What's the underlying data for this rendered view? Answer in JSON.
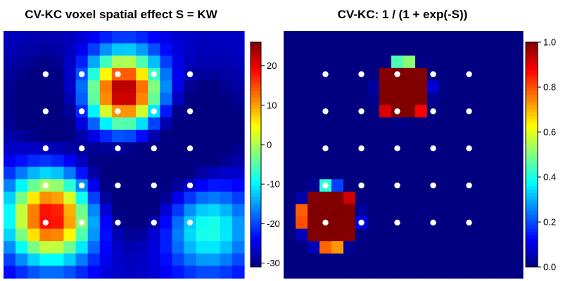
{
  "chart_data": [
    {
      "type": "heatmap",
      "title": "CV-KC voxel spatial effect S = KW",
      "xlabel": "",
      "ylabel": "",
      "grid_size": [
        20,
        20
      ],
      "colorbar": {
        "ticks": [
          20,
          10,
          0,
          -10,
          -20,
          -30
        ],
        "tick_labels": [
          "20",
          "10",
          "0",
          "-10",
          "-20",
          "-30"
        ],
        "range": [
          -31,
          26
        ],
        "palette": "jet"
      },
      "knots": {
        "columns": [
          3,
          6,
          9,
          12,
          15
        ],
        "rows": [
          3,
          6,
          9,
          12,
          15
        ],
        "color": "#ffffff"
      },
      "components": [
        {
          "cx": 9.5,
          "cy": 4.5,
          "amp": 55,
          "sigma": 2.2
        },
        {
          "cx": 3.5,
          "cy": 14.5,
          "amp": 48,
          "sigma": 2.5
        },
        {
          "cx": 16.5,
          "cy": 15.5,
          "amp": 20,
          "sigma": 2.5
        },
        {
          "cx": 9.5,
          "cy": 12.0,
          "amp": -12,
          "sigma": 3.0
        },
        {
          "cx": 4.0,
          "cy": 5.5,
          "amp": -8,
          "sigma": 3.0
        },
        {
          "cx": 15.0,
          "cy": 7.5,
          "amp": -10,
          "sigma": 3.0
        }
      ],
      "baseline": -27
    },
    {
      "type": "heatmap",
      "title": "CV-KC: 1 / (1 + exp(-S))",
      "xlabel": "",
      "ylabel": "",
      "grid_size": [
        20,
        20
      ],
      "colorbar": {
        "ticks": [
          1.0,
          0.8,
          0.6,
          0.4,
          0.2,
          0.0
        ],
        "tick_labels": [
          "1.0",
          "0.8",
          "0.6",
          "0.4",
          "0.2",
          "0.0"
        ],
        "range": [
          0,
          1
        ],
        "palette": "jet"
      },
      "knots": {
        "columns": [
          3,
          6,
          9,
          12,
          15
        ],
        "rows": [
          3,
          6,
          9,
          12,
          15
        ],
        "color": "#ffffff"
      },
      "transform": "logistic of left panel"
    }
  ]
}
